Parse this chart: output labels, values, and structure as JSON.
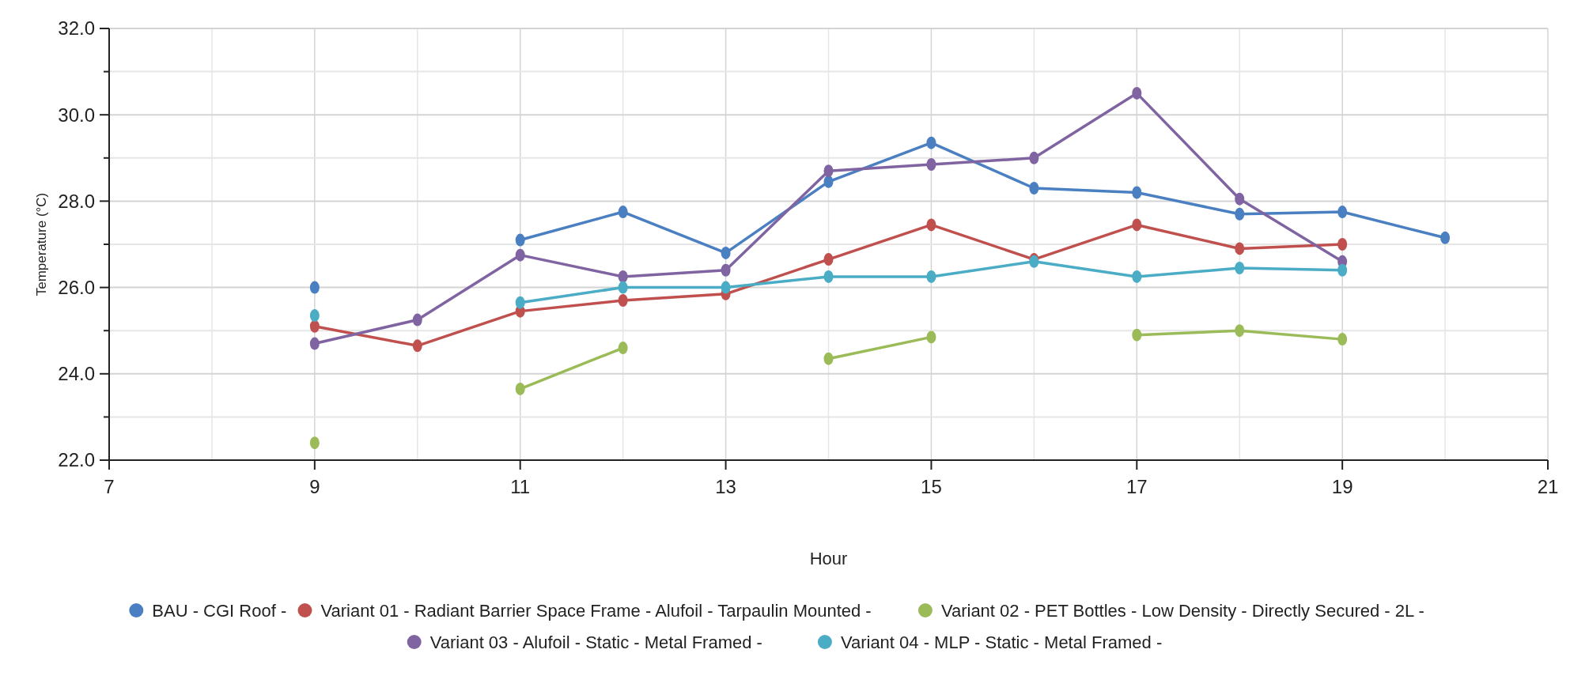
{
  "chart_data": {
    "type": "line",
    "xlabel": "Hour",
    "ylabel": "Temperature (°C)",
    "x": [
      9,
      10,
      11,
      12,
      13,
      14,
      15,
      16,
      17,
      18,
      19,
      20
    ],
    "series": [
      {
        "name": "BAU - CGI Roof -",
        "color": "#4a7fc1",
        "values": [
          26.0,
          null,
          27.1,
          27.75,
          26.8,
          28.45,
          29.35,
          28.3,
          28.2,
          27.7,
          27.75,
          27.15
        ]
      },
      {
        "name": "Variant 01 - Radiant Barrier Space Frame - Alufoil - Tarpaulin Mounted -",
        "color": "#c0504d",
        "values": [
          25.1,
          24.65,
          25.45,
          25.7,
          25.85,
          26.65,
          27.45,
          26.65,
          27.45,
          26.9,
          27.0,
          null
        ]
      },
      {
        "name": "Variant 02 - PET Bottles - Low Density - Directly Secured - 2L -",
        "color": "#9bbb59",
        "values": [
          22.4,
          null,
          23.65,
          24.6,
          null,
          24.35,
          24.85,
          null,
          24.9,
          25.0,
          24.8,
          null
        ]
      },
      {
        "name": "Variant 03 - Alufoil - Static - Metal Framed -",
        "color": "#8064a2",
        "values": [
          24.7,
          25.25,
          26.75,
          26.25,
          26.4,
          28.7,
          28.85,
          29.0,
          30.5,
          28.05,
          26.6,
          null
        ]
      },
      {
        "name": "Variant 04 - MLP - Static - Metal Framed -",
        "color": "#4bacc6",
        "values": [
          25.35,
          null,
          25.65,
          26.0,
          26.0,
          26.25,
          26.25,
          26.6,
          26.25,
          26.45,
          26.4,
          null
        ]
      }
    ],
    "xlim": [
      7,
      21
    ],
    "xticks": [
      7,
      {
        "value": 8,
        "label": null
      },
      9,
      {
        "value": 10,
        "label": null
      },
      11,
      {
        "value": 12,
        "label": null
      },
      13,
      {
        "value": 14,
        "label": null
      },
      15,
      {
        "value": 16,
        "label": null
      },
      17,
      {
        "value": 18,
        "label": null
      },
      19,
      {
        "value": 20,
        "label": null
      },
      21
    ],
    "ylim": [
      22,
      32
    ],
    "yticks": [
      {
        "value": 22,
        "label": "22.0"
      },
      {
        "value": 23,
        "label": null
      },
      {
        "value": 24,
        "label": "24.0"
      },
      {
        "value": 25,
        "label": null
      },
      {
        "value": 26,
        "label": "26.0"
      },
      {
        "value": 27,
        "label": null
      },
      {
        "value": 28,
        "label": "28.0"
      },
      {
        "value": 29,
        "label": null
      },
      {
        "value": 30,
        "label": "30.0"
      },
      {
        "value": 31,
        "label": null
      },
      {
        "value": 32,
        "label": "32.0"
      }
    ],
    "grid": true,
    "legend": "bottom",
    "marker": "circle",
    "line_style": "solid"
  }
}
